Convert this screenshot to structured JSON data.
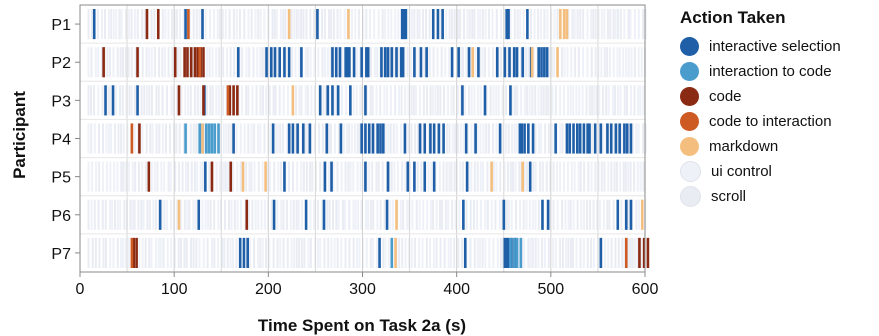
{
  "chart_data": {
    "type": "event-strip",
    "xlabel": "Time Spent on Task 2a (s)",
    "ylabel": "Participant",
    "xlim": [
      0,
      600
    ],
    "x_ticks": [
      0,
      100,
      200,
      300,
      400,
      500,
      600
    ],
    "x_minor_grid": [
      50,
      150,
      250,
      350,
      450,
      550
    ],
    "categories": [
      "P1",
      "P2",
      "P3",
      "P4",
      "P5",
      "P6",
      "P7"
    ],
    "legend": {
      "title": "Action Taken",
      "position": "right",
      "entries": [
        {
          "key": "interactive_selection",
          "label": "interactive selection",
          "color": "#1f5fa8"
        },
        {
          "key": "interaction_to_code",
          "label": "interaction to code",
          "color": "#4a9ccd"
        },
        {
          "key": "code",
          "label": "code",
          "color": "#8b2a12"
        },
        {
          "key": "code_to_interaction",
          "label": "code to interaction",
          "color": "#cc5a22"
        },
        {
          "key": "markdown",
          "label": "markdown",
          "color": "#f4bf7e"
        },
        {
          "key": "ui_control",
          "label": "ui control",
          "color": "#eef1f8"
        },
        {
          "key": "scroll",
          "label": "scroll",
          "color": "#e9ecf3"
        }
      ]
    },
    "series": [
      {
        "name": "interactive selection",
        "points": [
          {
            "p": "P1",
            "t": [
              15,
              112,
              130,
              252,
              342,
              344,
              346,
              375,
              380,
              385,
              453,
              455,
              475
            ]
          },
          {
            "p": "P2",
            "t": [
              168,
              198,
              203,
              207,
              212,
              217,
              222,
              235,
              268,
              272,
              276,
              282,
              284,
              286,
              291,
              299,
              304,
              306,
              320,
              324,
              327,
              331,
              336,
              341,
              343,
              355,
              362,
              368,
              395,
              402,
              413,
              423,
              443,
              451,
              456,
              461,
              464,
              470,
              479,
              487,
              490,
              493,
              496
            ]
          },
          {
            "p": "P3",
            "t": [
              27,
              35,
              61,
              132,
              255,
              263,
              268,
              274,
              287,
              303,
              406,
              430,
              457
            ]
          },
          {
            "p": "P4",
            "t": [
              163,
              205,
              222,
              226,
              231,
              237,
              244,
              262,
              277,
              299,
              303,
              307,
              311,
              316,
              319,
              322,
              345,
              361,
              366,
              372,
              376,
              381,
              386,
              410,
              420,
              446,
              467,
              469,
              472,
              476,
              481,
              505,
              517,
              520,
              524,
              528,
              531,
              535,
              539,
              541,
              547,
              553,
              560,
              564,
              569,
              573,
              578,
              581,
              585
            ]
          },
          {
            "p": "P5",
            "t": [
              133,
              217,
              260,
              267,
              303,
              327,
              348,
              355,
              366,
              376,
              411,
              478
            ]
          },
          {
            "p": "P6",
            "t": [
              85,
              126,
              206,
              240,
              259,
              326,
              407,
              450,
              497,
              491,
              571,
              580,
              585
            ]
          },
          {
            "p": "P7",
            "t": [
              170,
              174,
              178,
              318,
              409,
              451,
              453,
              455,
              458,
              462,
              553
            ]
          }
        ]
      },
      {
        "name": "interaction to code",
        "points": [
          {
            "p": "P4",
            "t": [
              112,
              127,
              130,
              134,
              137,
              140,
              143,
              147
            ]
          },
          {
            "p": "P7",
            "t": [
              331,
              457,
              461,
              464,
              468
            ]
          }
        ]
      },
      {
        "name": "code",
        "points": [
          {
            "p": "P1",
            "t": [
              71,
              83
            ]
          },
          {
            "p": "P2",
            "t": [
              25,
              61,
              101,
              111,
              114,
              118,
              122,
              125,
              128,
              131
            ]
          },
          {
            "p": "P3",
            "t": [
              105,
              131,
              159,
              163,
              167
            ]
          },
          {
            "p": "P4",
            "t": [
              63
            ]
          },
          {
            "p": "P5",
            "t": [
              73,
              140,
              160
            ]
          },
          {
            "p": "P6",
            "t": [
              177
            ]
          },
          {
            "p": "P7",
            "t": [
              57,
              60,
              594,
              599,
              603
            ]
          }
        ]
      },
      {
        "name": "code to interaction",
        "points": [
          {
            "p": "P1",
            "t": [
              115
            ]
          },
          {
            "p": "P2",
            "t": [
              127
            ]
          },
          {
            "p": "P3",
            "t": [
              157
            ]
          },
          {
            "p": "P4",
            "t": [
              55
            ]
          },
          {
            "p": "P7",
            "t": [
              55,
              580
            ]
          }
        ]
      },
      {
        "name": "markdown",
        "points": [
          {
            "p": "P1",
            "t": [
              222,
              285,
              510,
              514,
              517
            ]
          },
          {
            "p": "P2",
            "t": [
              417,
              480,
              507
            ]
          },
          {
            "p": "P3",
            "t": [
              226
            ]
          },
          {
            "p": "P4",
            "t": [
              130
            ]
          },
          {
            "p": "P5",
            "t": [
              173,
              197,
              437,
              470
            ]
          },
          {
            "p": "P6",
            "t": [
              105,
              336,
              597
            ]
          },
          {
            "p": "P7",
            "t": [
              335
            ]
          }
        ]
      }
    ]
  }
}
